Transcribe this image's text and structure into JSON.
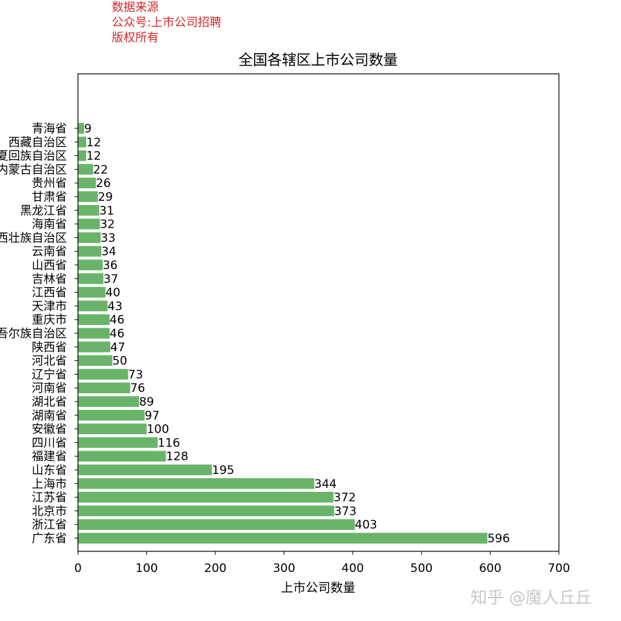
{
  "source_note": {
    "line1": "数据来源",
    "line2": "公众号:上市公司招聘",
    "line3": "版权所有"
  },
  "watermark": "知乎 @魔人丘丘",
  "colors": {
    "bar": "#6ab46a",
    "note": "#d62728"
  },
  "chart_data": {
    "type": "bar",
    "orientation": "horizontal",
    "title": "全国各辖区上市公司数量",
    "xlabel": "上市公司数量",
    "ylabel": "",
    "xlim": [
      0,
      700
    ],
    "xticks": [
      0,
      100,
      200,
      300,
      400,
      500,
      600,
      700
    ],
    "grid": false,
    "categories": [
      "广东省",
      "浙江省",
      "北京市",
      "江苏省",
      "上海市",
      "山东省",
      "福建省",
      "四川省",
      "安徽省",
      "湖南省",
      "湖北省",
      "河南省",
      "辽宁省",
      "河北省",
      "陕西省",
      "新疆维吾尔族自治区",
      "重庆市",
      "天津市",
      "江西省",
      "吉林省",
      "山西省",
      "云南省",
      "广西壮族自治区",
      "海南省",
      "黑龙江省",
      "甘肃省",
      "贵州省",
      "内蒙古自治区",
      "宁夏回族自治区",
      "西藏自治区",
      "青海省"
    ],
    "values": [
      596,
      403,
      373,
      372,
      344,
      195,
      128,
      116,
      100,
      97,
      89,
      76,
      73,
      50,
      47,
      46,
      46,
      43,
      40,
      37,
      36,
      34,
      33,
      32,
      31,
      29,
      26,
      22,
      12,
      12,
      9
    ]
  }
}
